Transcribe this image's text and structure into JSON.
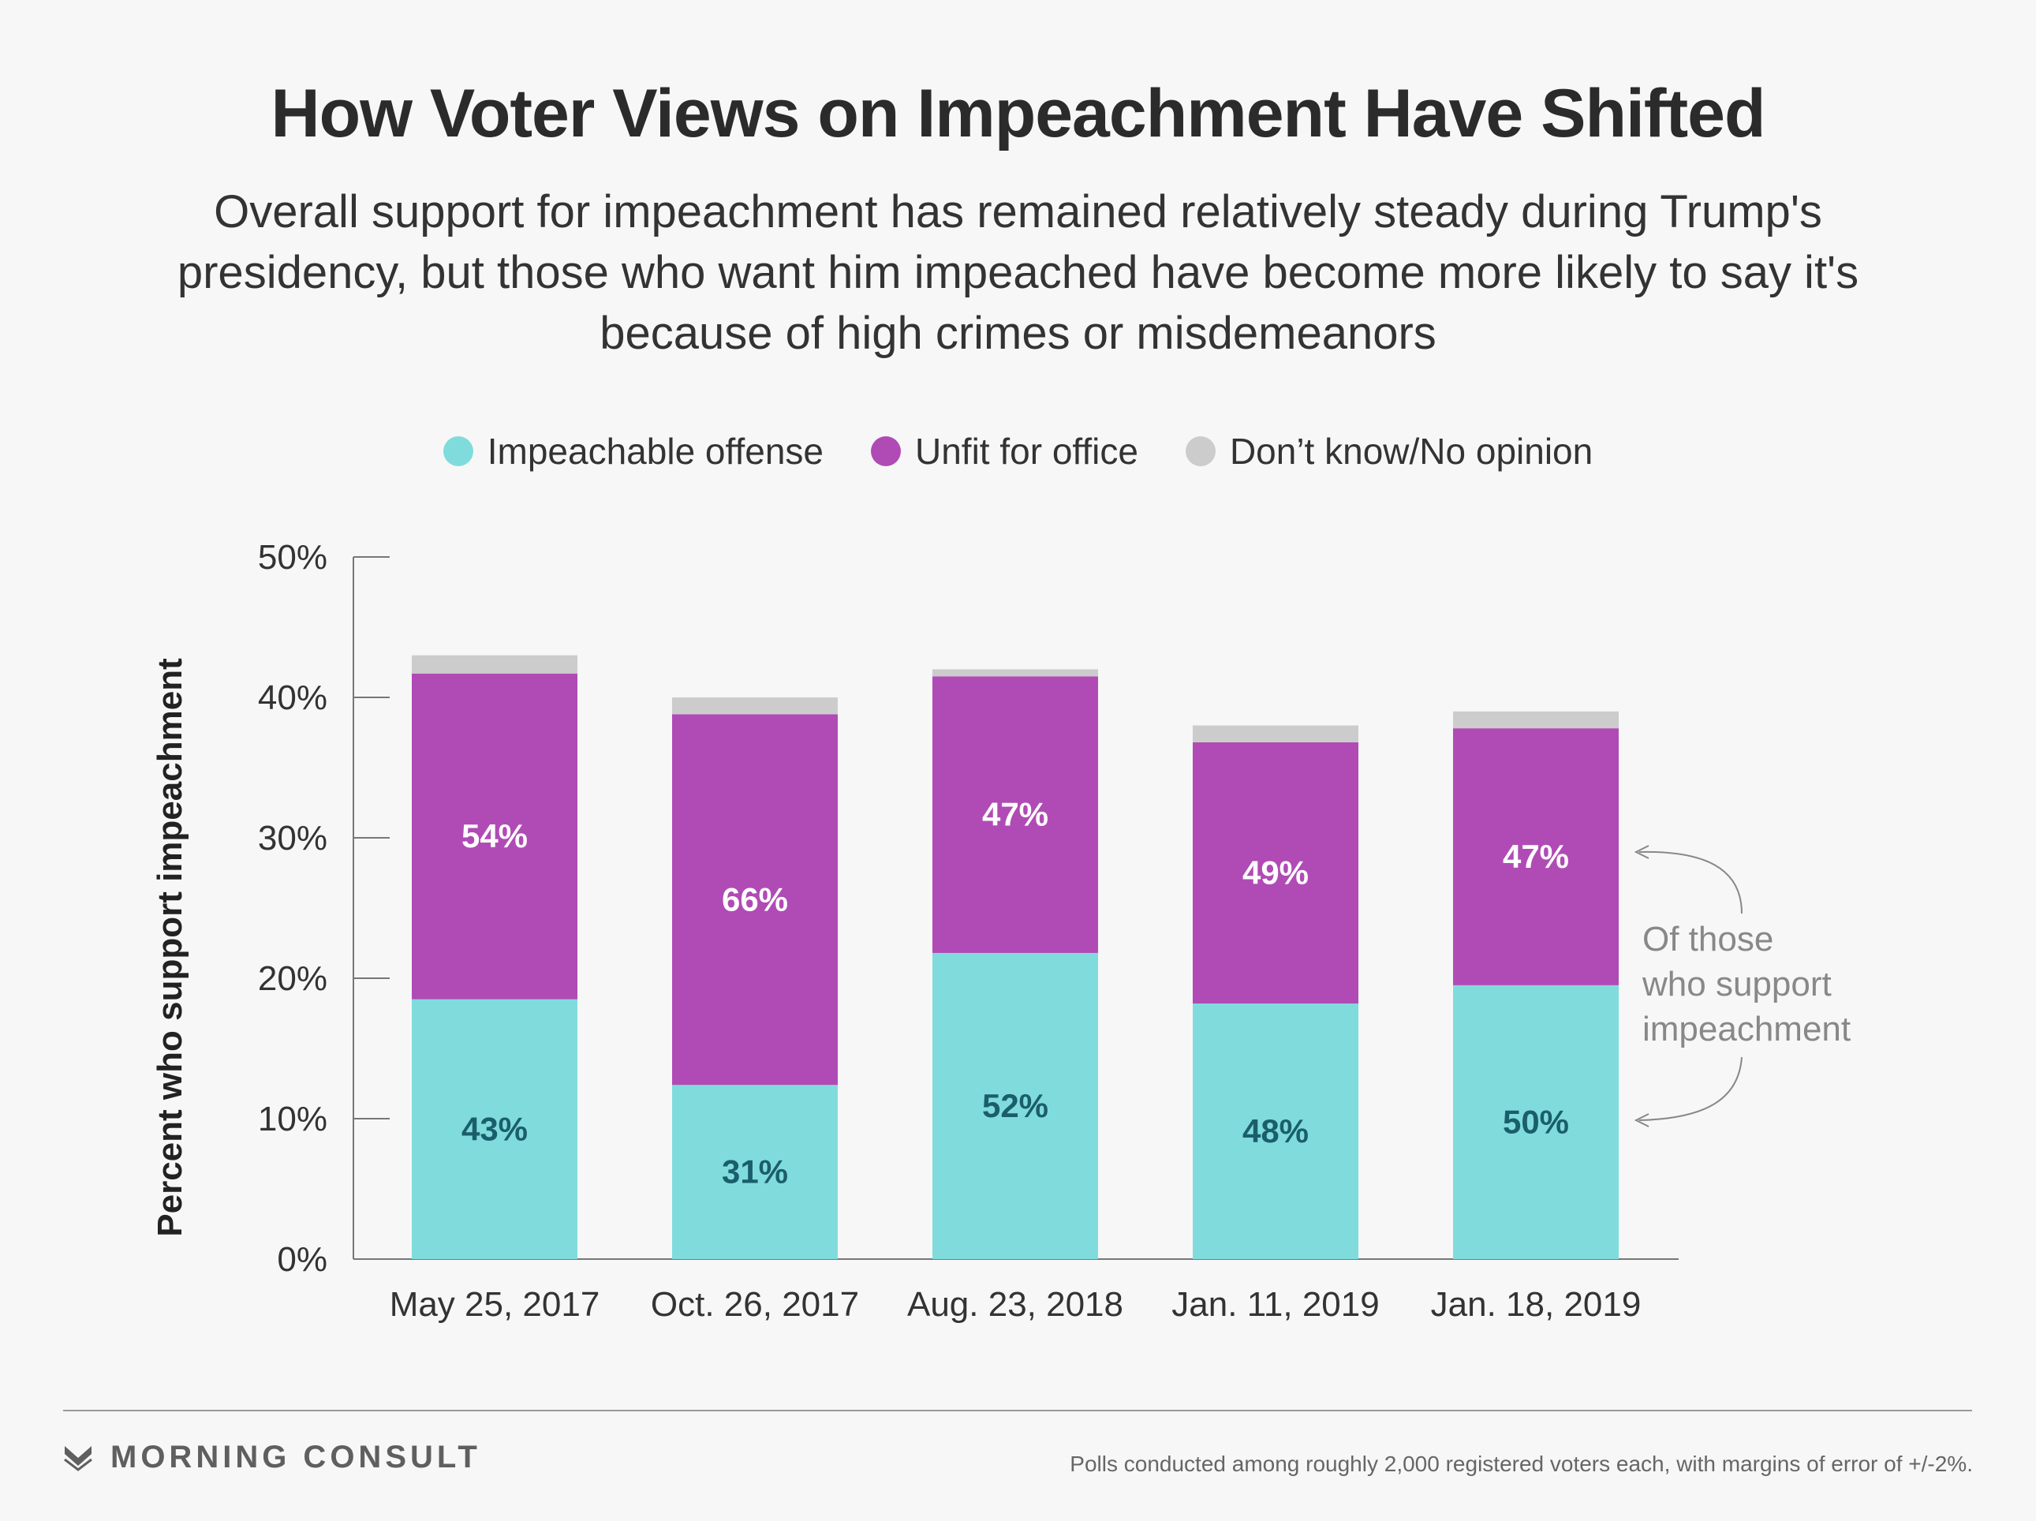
{
  "title": "How Voter Views on Impeachment Have Shifted",
  "subtitle": "Overall support for impeachment has remained relatively steady during Trump's presidency, but those who want him impeached have become more likely to say it's because of high crimes or misdemeanors",
  "legend": [
    {
      "label": "Impeachable offense",
      "color": "#80dcdc"
    },
    {
      "label": "Unfit for office",
      "color": "#b04bb6"
    },
    {
      "label": "Don’t know/No opinion",
      "color": "#cccccc"
    }
  ],
  "annotation": {
    "text": "Of those who support impeachment"
  },
  "footer": {
    "brand": "MORNING CONSULT",
    "note": "Polls conducted among roughly 2,000 registered voters each, with margins of error of +/-2%."
  },
  "chart_data": {
    "type": "bar",
    "stacked": true,
    "ylabel": "Percent who support impeachment",
    "ylim": [
      0,
      50
    ],
    "yticks": [
      0,
      10,
      20,
      30,
      40,
      50
    ],
    "ytick_labels": [
      "0%",
      "10%",
      "20%",
      "30%",
      "40%",
      "50%"
    ],
    "categories": [
      "May 25, 2017",
      "Oct. 26, 2017",
      "Aug. 23, 2018",
      "Jan. 11, 2019",
      "Jan. 18, 2019"
    ],
    "series": [
      {
        "name": "Impeachable offense",
        "color": "#80dcdc",
        "label_color": "#1b5e6b",
        "values": [
          18.5,
          12.4,
          21.8,
          18.2,
          19.5
        ],
        "labels": [
          "43%",
          "31%",
          "52%",
          "48%",
          "50%"
        ]
      },
      {
        "name": "Unfit for office",
        "color": "#b04bb6",
        "label_color": "#ffffff",
        "values": [
          23.2,
          26.4,
          19.7,
          18.6,
          18.3
        ],
        "labels": [
          "54%",
          "66%",
          "47%",
          "49%",
          "47%"
        ]
      },
      {
        "name": "Don’t know/No opinion",
        "color": "#cccccc",
        "label_color": "#333333",
        "values": [
          1.3,
          1.2,
          0.5,
          1.2,
          1.2
        ],
        "labels": [
          "",
          "",
          "",
          "",
          ""
        ]
      }
    ],
    "totals": [
      43,
      40,
      42,
      38,
      39
    ],
    "grid": false,
    "legend_position": "top"
  }
}
